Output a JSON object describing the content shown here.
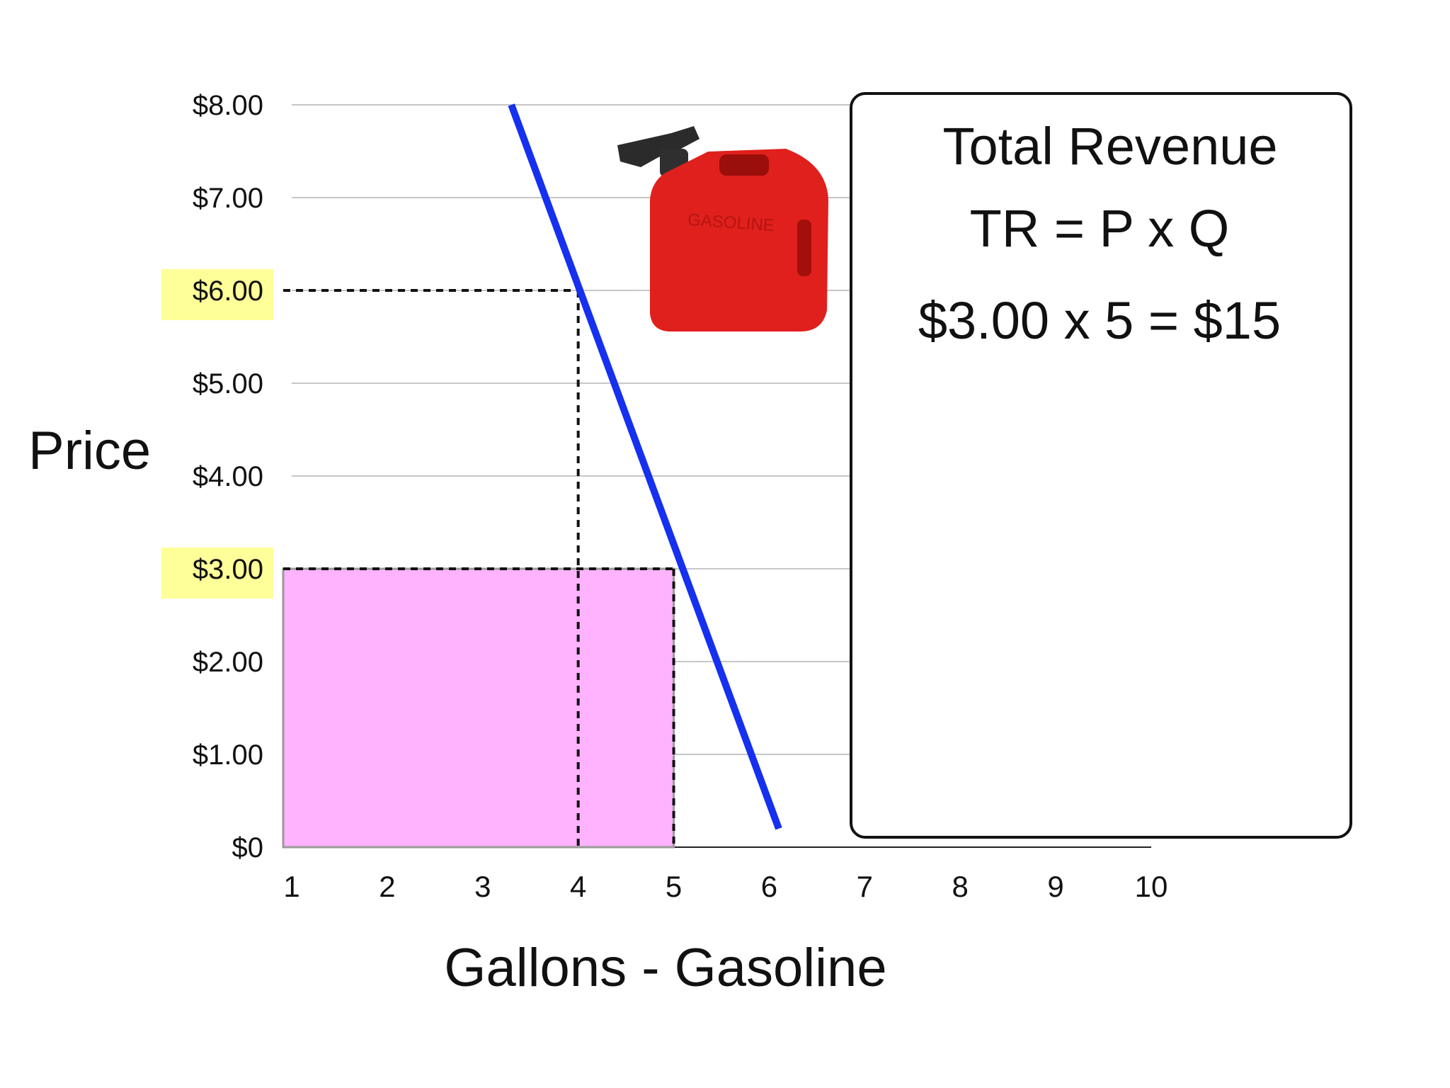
{
  "chart_data": {
    "type": "line",
    "ylabel": "Price",
    "xlabel": "Gallons - Gasoline",
    "x_ticks": [
      "1",
      "2",
      "3",
      "4",
      "5",
      "6",
      "7",
      "8",
      "9",
      "10"
    ],
    "y_ticks": [
      "$0",
      "$1.00",
      "$2.00",
      "$3.00",
      "$4.00",
      "$5.00",
      "$6.00",
      "$7.00",
      "$8.00"
    ],
    "xlim": [
      1,
      10
    ],
    "ylim": [
      0,
      8
    ],
    "grid": true,
    "highlighted_y_ticks": [
      "$6.00",
      "$3.00"
    ],
    "series": [
      {
        "x": [
          3.3,
          6.1
        ],
        "y": [
          8.0,
          0.2
        ],
        "color": "#1530ee"
      }
    ],
    "reference_points": [
      {
        "x": 4,
        "y": 6
      },
      {
        "x": 5,
        "y": 3
      }
    ],
    "revenue_area": {
      "x_from": 1,
      "x_to": 5,
      "y_from": 0,
      "y_to": 3,
      "color": "#ffb3ff"
    },
    "highlight_color": "#ffff99",
    "annotation": {
      "title": "Total Revenue",
      "formula": "TR = P x Q",
      "calculation": "$3.00 x 5 = $15"
    },
    "image": {
      "icon": "gas-can-icon",
      "text": "GASOLINE",
      "color": "#e0201c"
    }
  }
}
